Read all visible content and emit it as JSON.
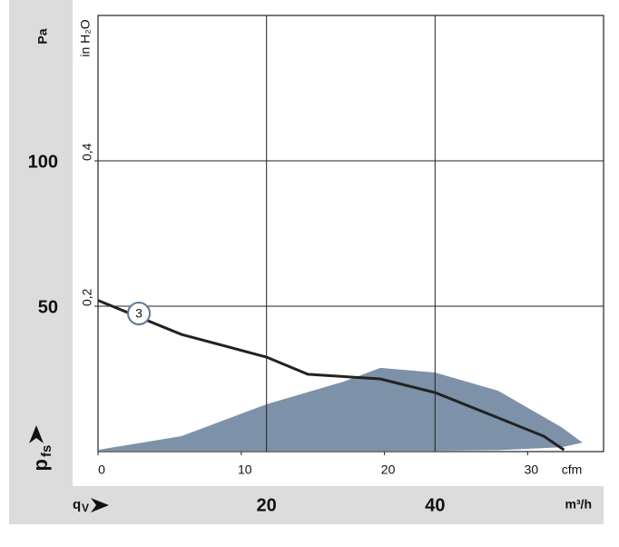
{
  "chart_data": {
    "type": "line",
    "y_label": {
      "symbol": "p",
      "subscript": "fs",
      "unit": "Pa"
    },
    "y2_label": "in H₂O",
    "x_label": {
      "symbol": "q",
      "subscript": "V",
      "unit": "m³/h"
    },
    "x2_label": "cfm",
    "xlim": [
      0,
      60
    ],
    "xticks": [
      20,
      40
    ],
    "x2lim": [
      0,
      35.3
    ],
    "x2ticks": [
      0,
      10,
      20,
      30
    ],
    "ylim": [
      0,
      150
    ],
    "yticks": [
      50,
      100
    ],
    "y2lim": [
      0,
      0.6
    ],
    "y2ticks": [
      {
        "value": 0.2,
        "label": "0,2"
      },
      {
        "value": 0.4,
        "label": "0,4"
      }
    ],
    "grid": true,
    "series": [
      {
        "name": "3",
        "color": "#222222",
        "x": [
          0,
          9.9,
          20,
          24.9,
          26.5,
          33.5,
          40,
          47.5,
          52.9,
          55.3
        ],
        "values": [
          52,
          40.3,
          32.5,
          26.6,
          26.3,
          25,
          20.3,
          11.6,
          5.3,
          0.6
        ]
      }
    ],
    "area": {
      "color": "#7d92a8",
      "x": [
        0,
        9.9,
        20,
        29.2,
        33.5,
        40,
        47.5,
        55,
        57.5
      ],
      "upper": [
        0.6,
        5.3,
        16.3,
        24.1,
        28.8,
        27.2,
        20.9,
        8.4,
        3.1
      ],
      "lower": [
        0.3,
        0.3,
        0.3,
        0.3,
        0.3,
        0.3,
        0.5,
        1.5,
        3.1
      ]
    }
  }
}
